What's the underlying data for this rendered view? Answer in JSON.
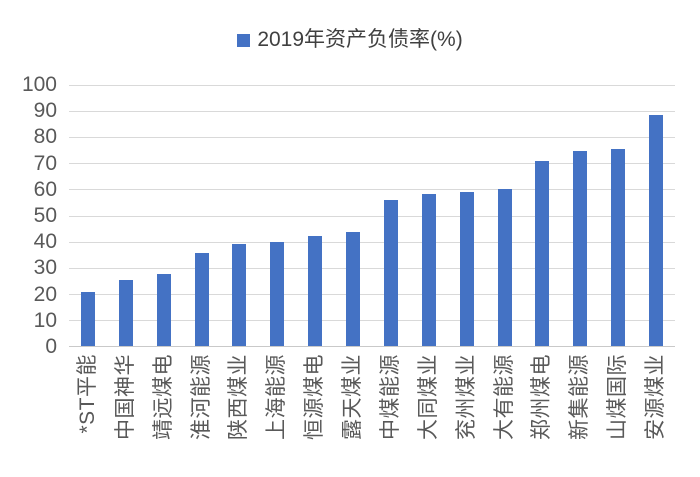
{
  "legend": {
    "label": "2019年资产负债率(%)",
    "swatch_color": "#4472C4"
  },
  "chart_data": {
    "type": "bar",
    "title": "2019年资产负债率(%)",
    "series_name": "2019年资产负债率(%)",
    "categories": [
      "*ST平能",
      "中国神华",
      "靖远煤电",
      "淮河能源",
      "陕西煤业",
      "上海能源",
      "恒源煤电",
      "露天煤业",
      "中煤能源",
      "大同煤业",
      "兖州煤业",
      "大有能源",
      "郑州煤电",
      "新集能源",
      "山煤国际",
      "安源煤业"
    ],
    "values": [
      21,
      25.5,
      28,
      36,
      39.5,
      40,
      42.5,
      44,
      56,
      58.5,
      59,
      60.5,
      71,
      75,
      75.5,
      88.5
    ],
    "xlabel": "",
    "ylabel": "",
    "ylim": [
      0,
      100
    ],
    "yticks": [
      0,
      10,
      20,
      30,
      40,
      50,
      60,
      70,
      80,
      90,
      100
    ],
    "grid": true,
    "legend_position": "top",
    "bar_color": "#4472C4",
    "gridline_color": "#D9D9D9",
    "axis_line_color": "#C9C9C9",
    "axis_text_color": "#595959",
    "legend_text_color": "#404040"
  }
}
